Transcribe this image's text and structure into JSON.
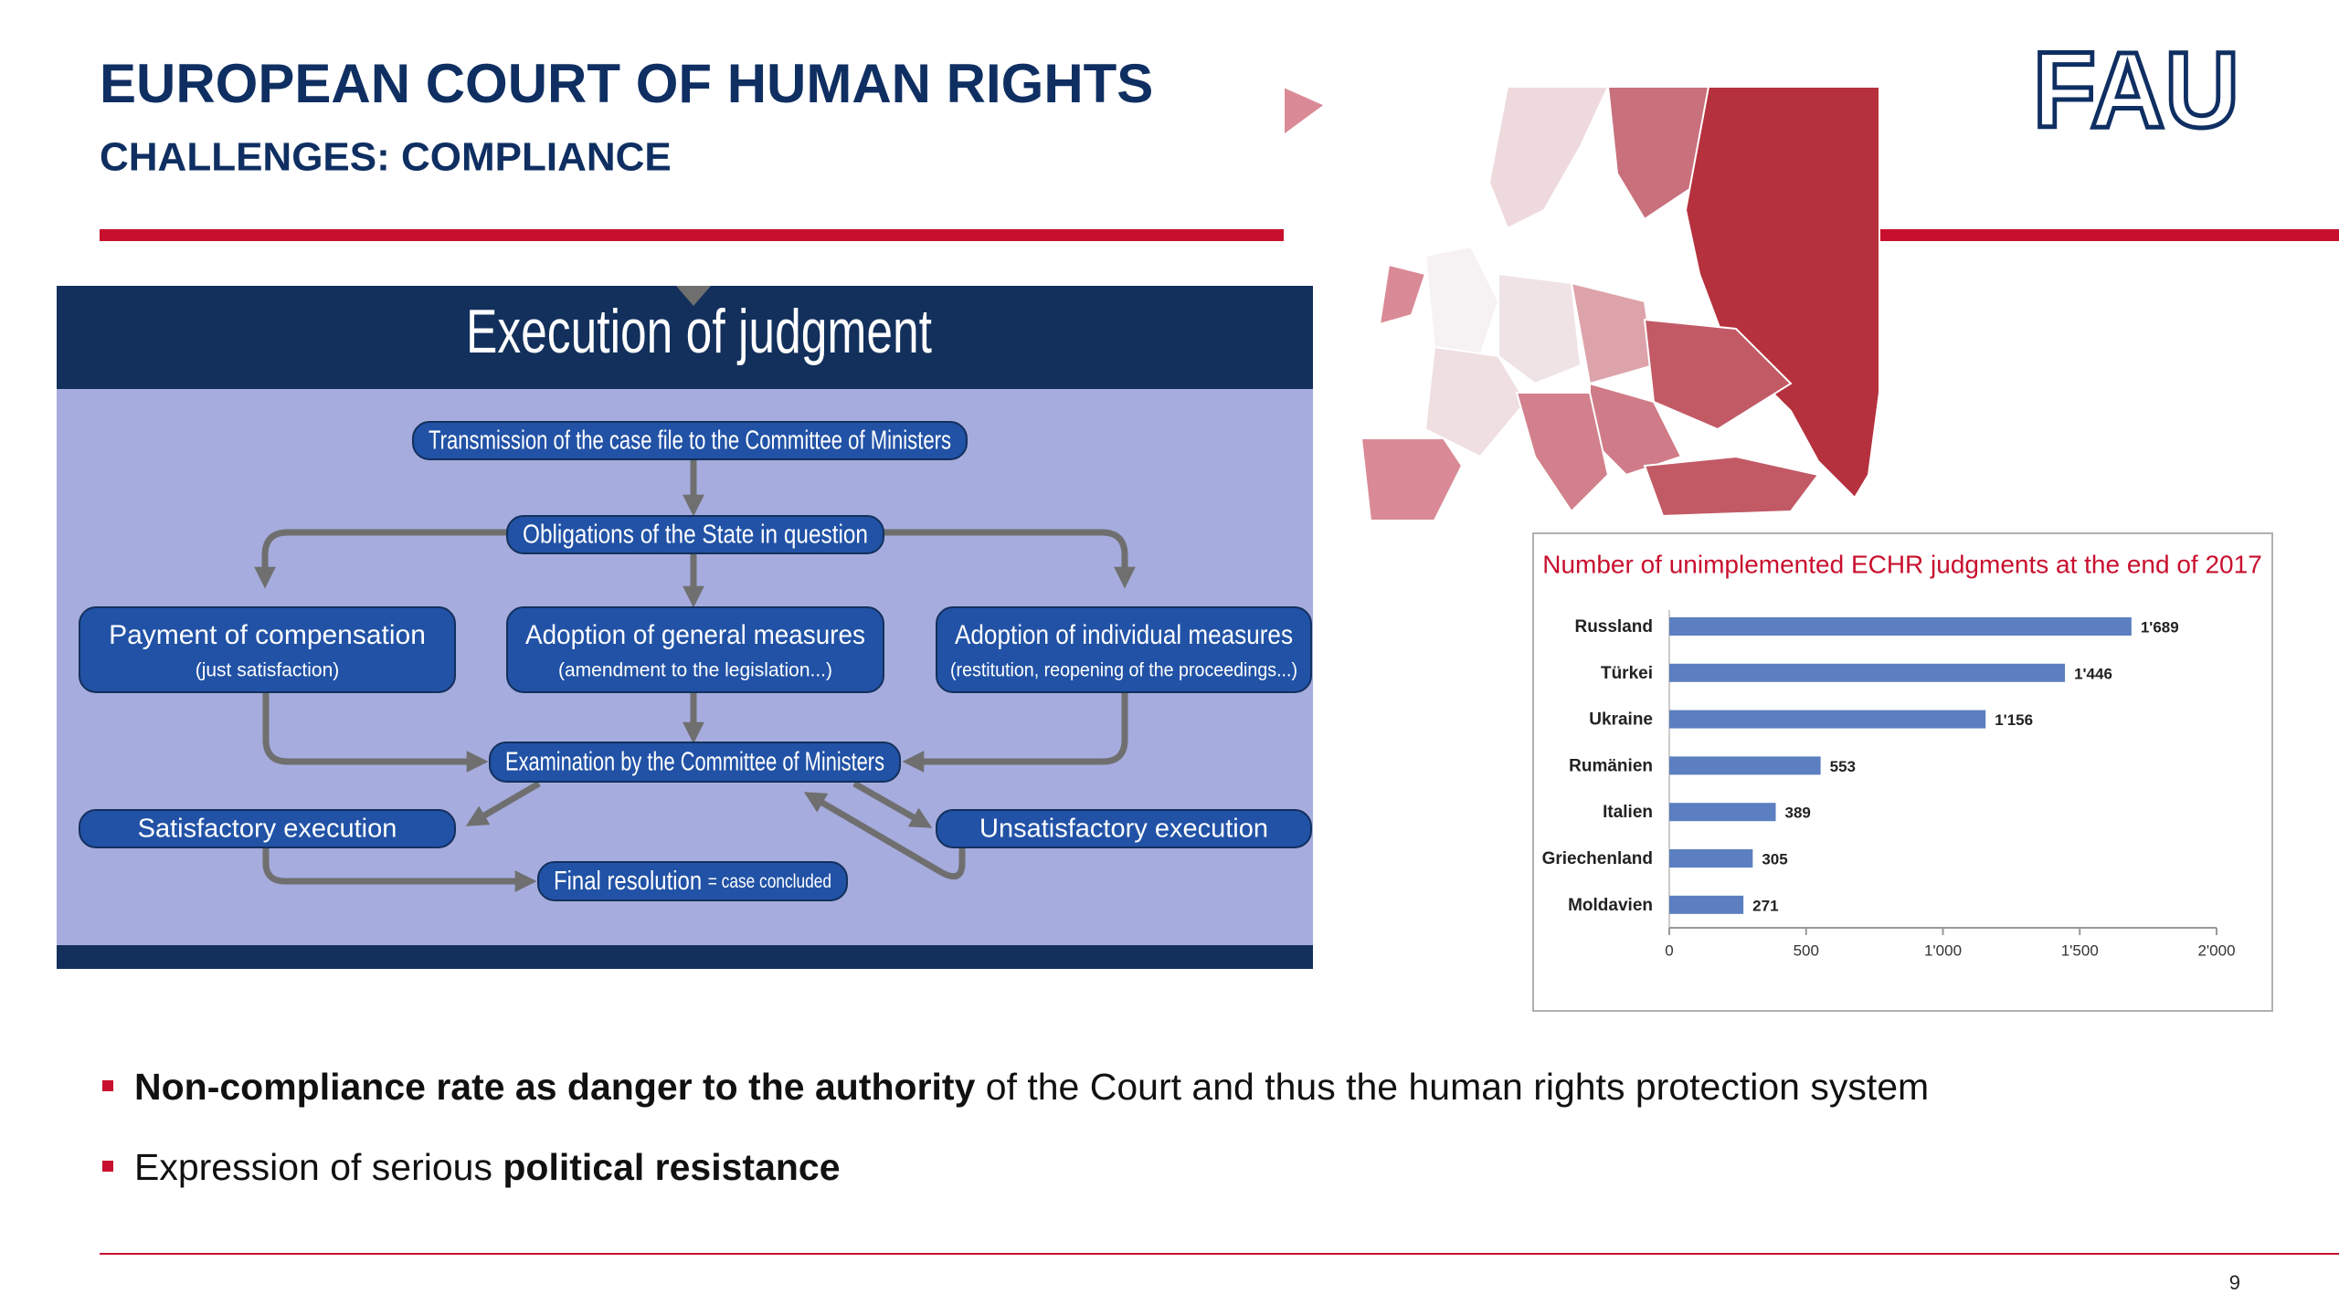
{
  "header": {
    "title": "EUROPEAN COURT OF HUMAN RIGHTS",
    "subtitle": "CHALLENGES: COMPLIANCE",
    "logo": "FAU"
  },
  "flowchart": {
    "title": "Execution of judgment",
    "nodes": [
      {
        "label": "Transmission of the case file to the Committee of Ministers"
      },
      {
        "label": "Obligations of the State in question"
      },
      {
        "label": "Payment of compensation",
        "sublabel": "(just satisfaction)"
      },
      {
        "label": "Adoption of general measures",
        "sublabel": "(amendment to the legislation...)"
      },
      {
        "label": "Adoption of individual measures",
        "sublabel": "(restitution, reopening of the proceedings...)"
      },
      {
        "label": "Examination by the Committee of Ministers"
      },
      {
        "label": "Satisfactory execution"
      },
      {
        "label": "Unsatisfactory execution"
      },
      {
        "label": "Final resolution",
        "sublabel": "= case concluded"
      }
    ]
  },
  "chart_data": {
    "type": "bar",
    "orientation": "horizontal",
    "title": "Number of unimplemented ECHR judgments at the end of 2017",
    "categories": [
      "Russland",
      "Türkei",
      "Ukraine",
      "Rumänien",
      "Italien",
      "Griechenland",
      "Moldavien"
    ],
    "values": [
      1689,
      1446,
      1156,
      553,
      389,
      305,
      271
    ],
    "value_labels": [
      "1'689",
      "1'446",
      "1'156",
      "553",
      "389",
      "305",
      "271"
    ],
    "color": "#5b7fc0",
    "xlim": [
      0,
      2000
    ],
    "xticks": [
      0,
      500,
      {
        "value": 1000,
        "label": "1'000"
      },
      {
        "value": 1500,
        "label": "1'500"
      },
      {
        "value": 2000,
        "label": "2'000"
      }
    ]
  },
  "bullets": [
    [
      {
        "text": "Non-compliance rate as danger to the authority",
        "bold": true
      },
      {
        "text": " of the Court and thus the human rights protection system"
      }
    ],
    [
      {
        "text": "Expression of serious "
      },
      {
        "text": "political resistance",
        "bold": true
      }
    ]
  ],
  "page_number": "9"
}
